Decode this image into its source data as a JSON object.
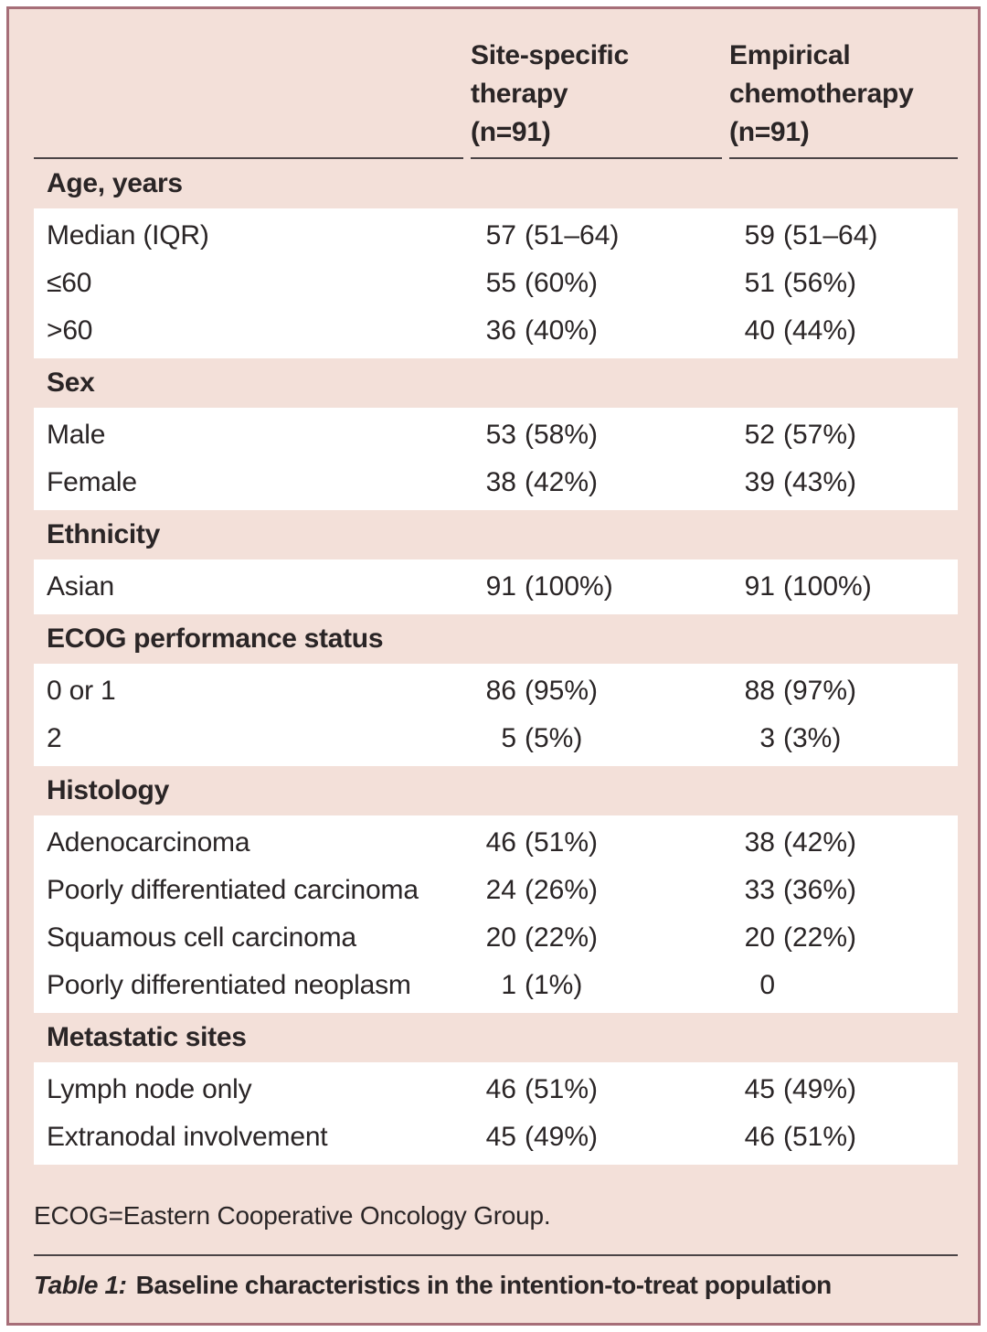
{
  "table": {
    "col_headers": [
      "Site-specific\ntherapy\n(n=91)",
      "Empirical\nchemotherapy\n(n=91)"
    ],
    "colors": {
      "background": "#f3e0d9",
      "border": "#a66e78",
      "row_background": "#ffffff",
      "text": "#2a2526",
      "rule": "#4a4446"
    },
    "sections": [
      {
        "header": "Age, years",
        "rows": [
          {
            "label": "Median (IQR)",
            "n1": "57",
            "p1": "(51–64)",
            "n2": "59",
            "p2": "(51–64)"
          },
          {
            "label": "≤60",
            "n1": "55",
            "p1": "(60%)",
            "n2": "51",
            "p2": "(56%)"
          },
          {
            "label": ">60",
            "n1": "36",
            "p1": "(40%)",
            "n2": "40",
            "p2": "(44%)"
          }
        ]
      },
      {
        "header": "Sex",
        "rows": [
          {
            "label": "Male",
            "n1": "53",
            "p1": "(58%)",
            "n2": "52",
            "p2": "(57%)"
          },
          {
            "label": "Female",
            "n1": "38",
            "p1": "(42%)",
            "n2": "39",
            "p2": "(43%)"
          }
        ]
      },
      {
        "header": "Ethnicity",
        "rows": [
          {
            "label": "Asian",
            "n1": "91",
            "p1": "(100%)",
            "n2": "91",
            "p2": "(100%)"
          }
        ]
      },
      {
        "header": "ECOG performance status",
        "rows": [
          {
            "label": "0 or 1",
            "n1": "86",
            "p1": "(95%)",
            "n2": "88",
            "p2": "(97%)"
          },
          {
            "label": "2",
            "n1": "5",
            "p1": "(5%)",
            "n2": "3",
            "p2": "(3%)"
          }
        ]
      },
      {
        "header": "Histology",
        "rows": [
          {
            "label": "Adenocarcinoma",
            "n1": "46",
            "p1": "(51%)",
            "n2": "38",
            "p2": "(42%)"
          },
          {
            "label": "Poorly differentiated carcinoma",
            "n1": "24",
            "p1": "(26%)",
            "n2": "33",
            "p2": "(36%)"
          },
          {
            "label": "Squamous cell carcinoma",
            "n1": "20",
            "p1": "(22%)",
            "n2": "20",
            "p2": "(22%)"
          },
          {
            "label": "Poorly differentiated neoplasm",
            "n1": "1",
            "p1": "(1%)",
            "n2": "0",
            "p2": ""
          }
        ]
      },
      {
        "header": "Metastatic sites",
        "rows": [
          {
            "label": "Lymph node only",
            "n1": "46",
            "p1": "(51%)",
            "n2": "45",
            "p2": "(49%)"
          },
          {
            "label": "Extranodal involvement",
            "n1": "45",
            "p1": "(49%)",
            "n2": "46",
            "p2": "(51%)"
          }
        ]
      }
    ],
    "footnote": "ECOG=Eastern Cooperative Oncology Group.",
    "caption_prefix": "Table 1:",
    "caption_text": "Baseline characteristics in the intention-to-treat population"
  }
}
